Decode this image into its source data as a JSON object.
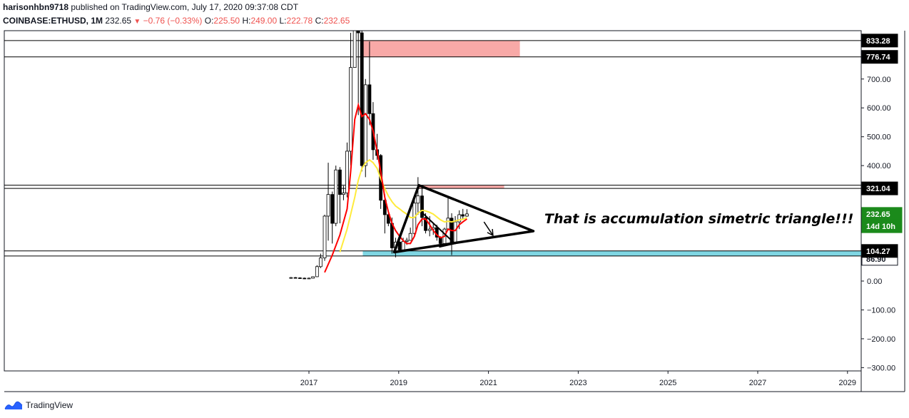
{
  "header": {
    "author": "harisonhbn9718",
    "published_text": "published on TradingView.com, July 17, 2020 09:37:08 CDT",
    "symbol": "COINBASE:ETHUSD, 1M",
    "last": "232.65",
    "change": "−0.76 (−0.33%)",
    "open_label": "O:",
    "open": "225.50",
    "high_label": "H:",
    "high": "249.00",
    "low_label": "L:",
    "low": "222.78",
    "close_label": "C:",
    "close": "232.65"
  },
  "footer": {
    "brand": "TradingView",
    "logo_icon": "tradingview-logo-icon"
  },
  "chart_data": {
    "type": "candlestick",
    "symbol": "COINBASE:ETHUSD",
    "interval": "1M",
    "y_ticks": [
      700,
      600,
      500,
      400,
      0,
      -100,
      -200,
      -300
    ],
    "y_tick_labels": [
      "700.00",
      "600.00",
      "500.00",
      "400.00",
      "0.00",
      "−100.00",
      "−200.00",
      "−300.00"
    ],
    "ylim": [
      -300,
      860
    ],
    "x_ticks": [
      2017,
      2019,
      2021,
      2023,
      2025,
      2027,
      2029
    ],
    "x_tick_labels": [
      "2017",
      "2019",
      "2021",
      "2023",
      "2025",
      "2027",
      "2029"
    ],
    "xlim": [
      2015.9,
      2029.4
    ],
    "price_labels": [
      {
        "label": "833.28",
        "value": 833.28,
        "style": "black"
      },
      {
        "label": "776.74",
        "value": 776.74,
        "style": "black"
      },
      {
        "label": "321.04",
        "value": 321.04,
        "style": "black"
      },
      {
        "label": "232.65",
        "value": 232.65,
        "style": "green"
      },
      {
        "label": "14d 10h",
        "value": 190,
        "style": "green"
      },
      {
        "label": "104.27",
        "value": 104.27,
        "style": "black"
      },
      {
        "label": "86.90",
        "value": 86.9,
        "style": "white"
      }
    ],
    "horizontal_lines": [
      833.28,
      776.74,
      332,
      321.04,
      104.27,
      86.9
    ],
    "zones": [
      {
        "name": "resistance-zone-top",
        "x0": 2018.2,
        "x1": 2021.7,
        "y0": 776.74,
        "y1": 833.28,
        "color": "#f8a9a7"
      },
      {
        "name": "resistance-zone-mid",
        "x0": 2019.45,
        "x1": 2021.35,
        "y0": 321.04,
        "y1": 332,
        "color": "#f8a9a7"
      },
      {
        "name": "support-zone",
        "x0": 2018.2,
        "x1": 2029.3,
        "y0": 86.9,
        "y1": 104.27,
        "color": "#7fd6e3"
      }
    ],
    "triangle": [
      [
        2019.45,
        332
      ],
      [
        2022.0,
        173
      ],
      [
        2018.9,
        100
      ]
    ],
    "inner_triangle": [
      [
        2019.5,
        240
      ],
      [
        2020.25,
        130
      ],
      [
        2019.9,
        118
      ]
    ],
    "arrow": {
      "from": [
        2020.9,
        205
      ],
      "to": [
        2021.1,
        158
      ]
    },
    "annotation": "That is accumulation simetric triangle!!!",
    "candles": [
      {
        "t": 2016.6,
        "o": 10,
        "h": 14,
        "l": 8,
        "c": 12
      },
      {
        "t": 2016.7,
        "o": 12,
        "h": 14,
        "l": 10,
        "c": 11
      },
      {
        "t": 2016.8,
        "o": 11,
        "h": 13,
        "l": 9,
        "c": 10
      },
      {
        "t": 2016.9,
        "o": 10,
        "h": 12,
        "l": 7,
        "c": 9
      },
      {
        "t": 2017.0,
        "o": 9,
        "h": 12,
        "l": 8,
        "c": 10
      },
      {
        "t": 2017.09,
        "o": 10,
        "h": 16,
        "l": 9,
        "c": 15
      },
      {
        "t": 2017.18,
        "o": 15,
        "h": 55,
        "l": 14,
        "c": 50
      },
      {
        "t": 2017.26,
        "o": 50,
        "h": 95,
        "l": 45,
        "c": 80
      },
      {
        "t": 2017.35,
        "o": 80,
        "h": 230,
        "l": 70,
        "c": 225
      },
      {
        "t": 2017.43,
        "o": 225,
        "h": 410,
        "l": 140,
        "c": 300
      },
      {
        "t": 2017.52,
        "o": 300,
        "h": 310,
        "l": 130,
        "c": 200
      },
      {
        "t": 2017.6,
        "o": 200,
        "h": 400,
        "l": 190,
        "c": 385
      },
      {
        "t": 2017.69,
        "o": 385,
        "h": 395,
        "l": 200,
        "c": 300
      },
      {
        "t": 2017.77,
        "o": 300,
        "h": 330,
        "l": 280,
        "c": 305
      },
      {
        "t": 2017.85,
        "o": 305,
        "h": 480,
        "l": 290,
        "c": 450
      },
      {
        "t": 2017.93,
        "o": 450,
        "h": 860,
        "l": 400,
        "c": 740
      },
      {
        "t": 2018.02,
        "o": 740,
        "h": 1400,
        "l": 740,
        "c": 1150
      },
      {
        "t": 2018.1,
        "o": 1150,
        "h": 1200,
        "l": 575,
        "c": 860
      },
      {
        "t": 2018.18,
        "o": 860,
        "h": 880,
        "l": 380,
        "c": 400
      },
      {
        "t": 2018.26,
        "o": 400,
        "h": 700,
        "l": 360,
        "c": 680
      },
      {
        "t": 2018.35,
        "o": 680,
        "h": 830,
        "l": 540,
        "c": 580
      },
      {
        "t": 2018.43,
        "o": 580,
        "h": 620,
        "l": 420,
        "c": 455
      },
      {
        "t": 2018.52,
        "o": 455,
        "h": 510,
        "l": 420,
        "c": 435
      },
      {
        "t": 2018.6,
        "o": 435,
        "h": 440,
        "l": 250,
        "c": 280
      },
      {
        "t": 2018.69,
        "o": 280,
        "h": 300,
        "l": 165,
        "c": 230
      },
      {
        "t": 2018.77,
        "o": 230,
        "h": 235,
        "l": 190,
        "c": 200
      },
      {
        "t": 2018.85,
        "o": 200,
        "h": 220,
        "l": 95,
        "c": 115
      },
      {
        "t": 2018.93,
        "o": 115,
        "h": 150,
        "l": 82,
        "c": 135
      },
      {
        "t": 2019.02,
        "o": 135,
        "h": 160,
        "l": 100,
        "c": 108
      },
      {
        "t": 2019.1,
        "o": 108,
        "h": 150,
        "l": 102,
        "c": 137
      },
      {
        "t": 2019.18,
        "o": 137,
        "h": 150,
        "l": 125,
        "c": 141
      },
      {
        "t": 2019.26,
        "o": 141,
        "h": 185,
        "l": 140,
        "c": 165
      },
      {
        "t": 2019.35,
        "o": 165,
        "h": 290,
        "l": 160,
        "c": 270
      },
      {
        "t": 2019.43,
        "o": 270,
        "h": 360,
        "l": 230,
        "c": 295
      },
      {
        "t": 2019.52,
        "o": 295,
        "h": 325,
        "l": 190,
        "c": 220
      },
      {
        "t": 2019.6,
        "o": 220,
        "h": 235,
        "l": 165,
        "c": 175
      },
      {
        "t": 2019.69,
        "o": 175,
        "h": 225,
        "l": 155,
        "c": 180
      },
      {
        "t": 2019.77,
        "o": 180,
        "h": 200,
        "l": 160,
        "c": 185
      },
      {
        "t": 2019.85,
        "o": 185,
        "h": 195,
        "l": 140,
        "c": 152
      },
      {
        "t": 2019.93,
        "o": 152,
        "h": 155,
        "l": 117,
        "c": 130
      },
      {
        "t": 2020.02,
        "o": 130,
        "h": 185,
        "l": 127,
        "c": 180
      },
      {
        "t": 2020.1,
        "o": 180,
        "h": 290,
        "l": 175,
        "c": 218
      },
      {
        "t": 2020.18,
        "o": 218,
        "h": 235,
        "l": 90,
        "c": 133
      },
      {
        "t": 2020.26,
        "o": 133,
        "h": 225,
        "l": 130,
        "c": 205
      },
      {
        "t": 2020.35,
        "o": 205,
        "h": 245,
        "l": 180,
        "c": 230
      },
      {
        "t": 2020.43,
        "o": 230,
        "h": 250,
        "l": 215,
        "c": 225
      },
      {
        "t": 2020.52,
        "o": 225,
        "h": 249,
        "l": 222.78,
        "c": 232.65
      }
    ],
    "ma_red": [
      [
        2017.35,
        30
      ],
      [
        2017.52,
        90
      ],
      [
        2017.69,
        160
      ],
      [
        2017.85,
        250
      ],
      [
        2017.93,
        380
      ],
      [
        2018.02,
        560
      ],
      [
        2018.1,
        610
      ],
      [
        2018.18,
        570
      ],
      [
        2018.26,
        580
      ],
      [
        2018.35,
        560
      ],
      [
        2018.43,
        520
      ],
      [
        2018.52,
        450
      ],
      [
        2018.6,
        380
      ],
      [
        2018.69,
        290
      ],
      [
        2018.77,
        240
      ],
      [
        2018.85,
        200
      ],
      [
        2018.93,
        175
      ],
      [
        2019.02,
        155
      ],
      [
        2019.1,
        140
      ],
      [
        2019.18,
        130
      ],
      [
        2019.26,
        130
      ],
      [
        2019.35,
        155
      ],
      [
        2019.43,
        195
      ],
      [
        2019.52,
        215
      ],
      [
        2019.6,
        215
      ],
      [
        2019.69,
        195
      ],
      [
        2019.77,
        175
      ],
      [
        2019.85,
        160
      ],
      [
        2019.93,
        150
      ],
      [
        2020.02,
        155
      ],
      [
        2020.1,
        180
      ],
      [
        2020.18,
        175
      ],
      [
        2020.26,
        175
      ],
      [
        2020.35,
        195
      ],
      [
        2020.43,
        205
      ],
      [
        2020.52,
        215
      ]
    ],
    "ma_yellow": [
      [
        2017.69,
        100
      ],
      [
        2017.85,
        180
      ],
      [
        2018.02,
        290
      ],
      [
        2018.1,
        350
      ],
      [
        2018.18,
        390
      ],
      [
        2018.26,
        410
      ],
      [
        2018.35,
        420
      ],
      [
        2018.43,
        410
      ],
      [
        2018.52,
        390
      ],
      [
        2018.6,
        355
      ],
      [
        2018.69,
        320
      ],
      [
        2018.77,
        295
      ],
      [
        2018.85,
        275
      ],
      [
        2018.93,
        260
      ],
      [
        2019.02,
        250
      ],
      [
        2019.1,
        240
      ],
      [
        2019.18,
        232
      ],
      [
        2019.26,
        220
      ],
      [
        2019.35,
        220
      ],
      [
        2019.43,
        235
      ],
      [
        2019.52,
        245
      ],
      [
        2019.6,
        243
      ],
      [
        2019.69,
        238
      ],
      [
        2019.77,
        232
      ],
      [
        2019.85,
        222
      ],
      [
        2019.93,
        212
      ],
      [
        2020.02,
        205
      ],
      [
        2020.1,
        207
      ],
      [
        2020.18,
        205
      ],
      [
        2020.26,
        208
      ],
      [
        2020.35,
        212
      ],
      [
        2020.43,
        214
      ],
      [
        2020.52,
        220
      ]
    ]
  }
}
